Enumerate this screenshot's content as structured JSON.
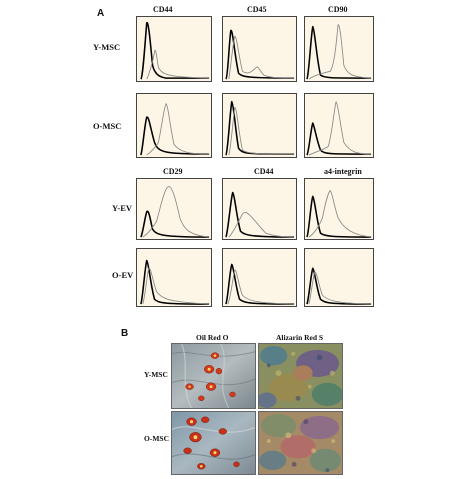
{
  "panel_a": {
    "letter": "A",
    "top_markers": [
      "CD44",
      "CD45",
      "CD90"
    ],
    "bottom_markers": [
      "CD29",
      "CD44",
      "a4-integrin"
    ],
    "top_rows": [
      "Y-MSC",
      "O-MSC"
    ],
    "bottom_rows": [
      "Y-EV",
      "O-EV"
    ]
  },
  "panel_b": {
    "letter": "B",
    "stains": [
      "Oil Red O",
      "Alizarin Red S"
    ],
    "rows": [
      "Y-MSC",
      "O-MSC"
    ]
  },
  "colors": {
    "histogram_bg": "#fdf6e6",
    "isotype_line": "#000000",
    "marker_line": "#888888"
  }
}
